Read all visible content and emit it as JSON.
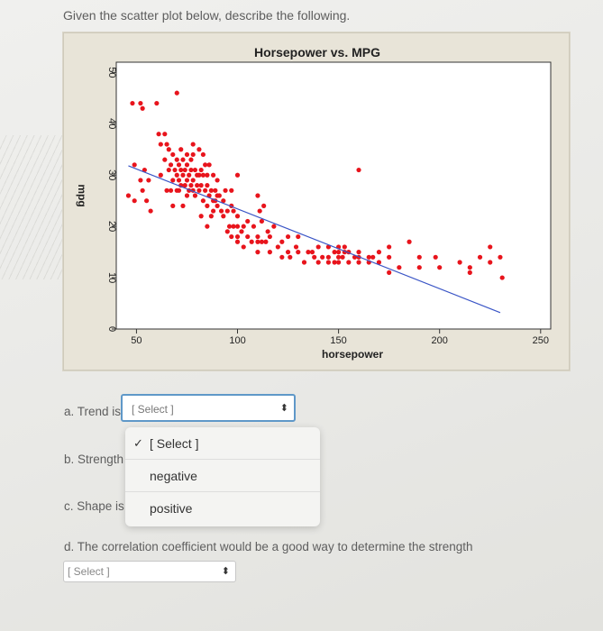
{
  "question": "Given the scatter plot below, describe the following.",
  "chart_data": {
    "type": "scatter",
    "title": "Horsepower vs. MPG",
    "xlabel": "horsepower",
    "ylabel": "mpg",
    "xlim": [
      40,
      255
    ],
    "ylim": [
      0,
      52
    ],
    "xticks": [
      "50",
      "100",
      "150",
      "200",
      "250"
    ],
    "yticks": [
      "0",
      "10",
      "20",
      "30",
      "40",
      "50"
    ],
    "point_color": "#e8141c",
    "trend_color": "#3a55c6",
    "trendline": {
      "x": [
        46,
        230
      ],
      "y": [
        31.8,
        3.2
      ]
    },
    "points": [
      [
        46,
        26
      ],
      [
        48,
        44
      ],
      [
        49,
        32
      ],
      [
        49,
        25
      ],
      [
        52,
        29
      ],
      [
        52,
        44
      ],
      [
        53,
        27
      ],
      [
        53,
        43
      ],
      [
        54,
        31
      ],
      [
        55,
        25
      ],
      [
        56,
        29
      ],
      [
        57,
        23
      ],
      [
        60,
        44
      ],
      [
        61,
        38
      ],
      [
        62,
        36
      ],
      [
        62,
        30
      ],
      [
        64,
        38
      ],
      [
        64,
        33
      ],
      [
        65,
        36
      ],
      [
        65,
        27
      ],
      [
        66,
        35
      ],
      [
        66,
        31
      ],
      [
        67,
        32
      ],
      [
        67,
        27
      ],
      [
        68,
        34
      ],
      [
        68,
        29
      ],
      [
        68,
        24
      ],
      [
        69,
        31
      ],
      [
        70,
        46
      ],
      [
        70,
        33
      ],
      [
        70,
        30
      ],
      [
        70,
        27
      ],
      [
        71,
        32
      ],
      [
        71,
        29
      ],
      [
        71,
        27
      ],
      [
        72,
        35
      ],
      [
        72,
        31
      ],
      [
        72,
        28
      ],
      [
        73,
        33
      ],
      [
        73,
        30
      ],
      [
        73,
        24
      ],
      [
        74,
        31
      ],
      [
        74,
        28
      ],
      [
        75,
        34
      ],
      [
        75,
        32
      ],
      [
        75,
        29
      ],
      [
        75,
        26
      ],
      [
        76,
        30
      ],
      [
        76,
        27
      ],
      [
        77,
        33
      ],
      [
        77,
        31
      ],
      [
        77,
        28
      ],
      [
        78,
        34
      ],
      [
        78,
        36
      ],
      [
        78,
        29
      ],
      [
        78,
        27
      ],
      [
        79,
        31
      ],
      [
        79,
        26
      ],
      [
        80,
        30
      ],
      [
        80,
        28
      ],
      [
        81,
        30
      ],
      [
        81,
        27
      ],
      [
        81,
        35
      ],
      [
        82,
        22
      ],
      [
        82,
        28
      ],
      [
        82,
        31
      ],
      [
        83,
        34
      ],
      [
        83,
        30
      ],
      [
        83,
        25
      ],
      [
        84,
        27
      ],
      [
        84,
        32
      ],
      [
        85,
        30
      ],
      [
        85,
        28
      ],
      [
        85,
        24
      ],
      [
        86,
        26
      ],
      [
        86,
        32
      ],
      [
        87,
        22
      ],
      [
        87,
        27
      ],
      [
        88,
        25
      ],
      [
        88,
        23
      ],
      [
        88,
        30
      ],
      [
        89,
        27
      ],
      [
        89,
        25
      ],
      [
        90,
        29
      ],
      [
        90,
        24
      ],
      [
        90,
        26
      ],
      [
        91,
        26
      ],
      [
        92,
        23
      ],
      [
        93,
        22
      ],
      [
        93,
        25
      ],
      [
        94,
        27
      ],
      [
        95,
        23
      ],
      [
        95,
        19
      ],
      [
        96,
        20
      ],
      [
        97,
        24
      ],
      [
        97,
        18
      ],
      [
        97,
        27
      ],
      [
        98,
        23
      ],
      [
        98,
        20
      ],
      [
        100,
        18
      ],
      [
        100,
        20
      ],
      [
        100,
        17
      ],
      [
        100,
        22
      ],
      [
        102,
        19
      ],
      [
        103,
        16
      ],
      [
        103,
        20
      ],
      [
        105,
        21
      ],
      [
        105,
        18
      ],
      [
        107,
        17
      ],
      [
        108,
        20
      ],
      [
        110,
        17
      ],
      [
        110,
        15
      ],
      [
        110,
        18
      ],
      [
        111,
        23
      ],
      [
        112,
        21
      ],
      [
        112,
        17
      ],
      [
        114,
        17
      ],
      [
        115,
        19
      ],
      [
        116,
        15
      ],
      [
        116,
        18
      ],
      [
        118,
        20
      ],
      [
        120,
        16
      ],
      [
        122,
        14
      ],
      [
        122,
        17
      ],
      [
        125,
        18
      ],
      [
        125,
        15
      ],
      [
        126,
        14
      ],
      [
        129,
        16
      ],
      [
        130,
        15
      ],
      [
        130,
        18
      ],
      [
        133,
        13
      ],
      [
        135,
        15
      ],
      [
        137,
        15
      ],
      [
        138,
        14
      ],
      [
        140,
        16
      ],
      [
        140,
        13
      ],
      [
        142,
        14
      ],
      [
        145,
        14
      ],
      [
        145,
        13
      ],
      [
        145,
        16
      ],
      [
        148,
        15
      ],
      [
        148,
        13
      ],
      [
        150,
        15
      ],
      [
        150,
        14
      ],
      [
        150,
        13
      ],
      [
        150,
        16
      ],
      [
        152,
        14
      ],
      [
        153,
        16
      ],
      [
        153,
        15
      ],
      [
        155,
        13
      ],
      [
        155,
        15
      ],
      [
        158,
        14
      ],
      [
        160,
        13
      ],
      [
        160,
        14
      ],
      [
        160,
        15
      ],
      [
        165,
        14
      ],
      [
        165,
        13
      ],
      [
        167,
        14
      ],
      [
        170,
        13
      ],
      [
        170,
        15
      ],
      [
        175,
        16
      ],
      [
        175,
        14
      ],
      [
        175,
        11
      ],
      [
        180,
        12
      ],
      [
        185,
        17
      ],
      [
        190,
        14
      ],
      [
        190,
        12
      ],
      [
        198,
        14
      ],
      [
        200,
        12
      ],
      [
        210,
        13
      ],
      [
        215,
        12
      ],
      [
        215,
        11
      ],
      [
        220,
        14
      ],
      [
        225,
        16
      ],
      [
        225,
        13
      ],
      [
        230,
        14
      ],
      [
        231,
        10
      ],
      [
        85,
        20
      ],
      [
        160,
        31
      ],
      [
        100,
        30
      ],
      [
        113,
        24
      ],
      [
        110,
        26
      ]
    ]
  },
  "questions": [
    {
      "label": "a. Trend is",
      "select": {
        "placeholder": "[ Select ]"
      }
    },
    {
      "label": "b. Strength"
    },
    {
      "label": "c. Shape is"
    },
    {
      "label": "d. The correlation coefficient would be a good way to determine the strength",
      "select": {
        "placeholder": "[ Select ]"
      }
    }
  ],
  "dropdown": {
    "options": [
      "[ Select ]",
      "negative",
      "positive"
    ],
    "selected": 0
  }
}
